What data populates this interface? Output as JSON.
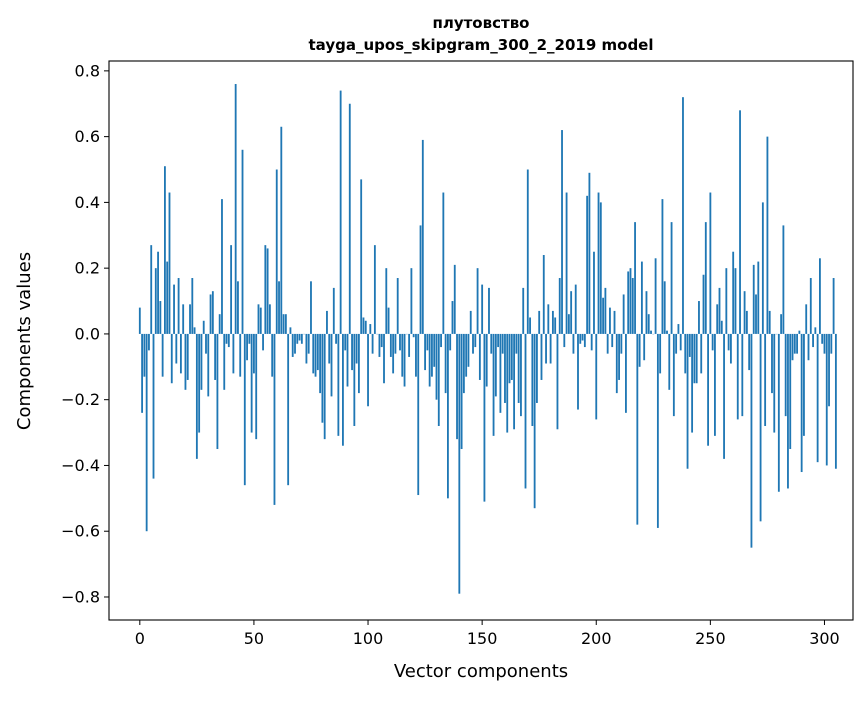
{
  "chart_data": {
    "type": "bar",
    "title_line1": "плутовство",
    "title_line2": "tayga_upos_skipgram_300_2_2019 model",
    "xlabel": "Vector components",
    "ylabel": "Components values",
    "xlim": [
      -13.5,
      312.5
    ],
    "ylim": [
      -0.87,
      0.83
    ],
    "xticks": [
      0,
      50,
      100,
      150,
      200,
      250,
      300
    ],
    "xtick_labels": [
      "0",
      "50",
      "100",
      "150",
      "200",
      "250",
      "300"
    ],
    "yticks": [
      -0.8,
      -0.6,
      -0.4,
      -0.2,
      0.0,
      0.2,
      0.4,
      0.6,
      0.8
    ],
    "ytick_labels": [
      "−0.8",
      "−0.6",
      "−0.4",
      "−0.2",
      "0.0",
      "0.2",
      "0.4",
      "0.6",
      "0.8"
    ],
    "bar_color": "#1f77b4",
    "values": [
      0.08,
      -0.24,
      -0.13,
      -0.6,
      -0.05,
      0.27,
      -0.44,
      0.2,
      0.25,
      0.1,
      -0.13,
      0.51,
      0.22,
      0.43,
      -0.15,
      0.15,
      -0.09,
      0.17,
      -0.12,
      0.09,
      -0.17,
      -0.14,
      0.09,
      0.17,
      0.02,
      -0.38,
      -0.3,
      -0.17,
      0.04,
      -0.06,
      -0.19,
      0.12,
      0.13,
      -0.14,
      -0.35,
      0.06,
      0.41,
      -0.17,
      -0.03,
      -0.04,
      0.27,
      -0.12,
      0.76,
      0.16,
      -0.13,
      0.56,
      -0.46,
      -0.08,
      -0.03,
      -0.3,
      -0.12,
      -0.32,
      0.09,
      0.08,
      -0.05,
      0.27,
      0.26,
      0.09,
      -0.13,
      -0.52,
      0.5,
      0.16,
      0.63,
      0.06,
      0.06,
      -0.46,
      0.02,
      -0.07,
      -0.06,
      -0.03,
      -0.02,
      -0.03,
      0.0,
      -0.09,
      -0.06,
      0.16,
      -0.12,
      -0.13,
      -0.11,
      -0.18,
      -0.27,
      -0.32,
      0.07,
      -0.09,
      -0.19,
      0.14,
      -0.03,
      -0.31,
      0.74,
      -0.34,
      -0.05,
      -0.16,
      0.7,
      -0.11,
      -0.28,
      -0.09,
      -0.18,
      0.47,
      0.05,
      0.04,
      -0.22,
      0.03,
      -0.06,
      0.27,
      0.0,
      -0.07,
      -0.04,
      -0.15,
      0.2,
      0.08,
      -0.07,
      -0.12,
      -0.06,
      0.17,
      -0.05,
      -0.13,
      -0.16,
      0.0,
      -0.07,
      0.2,
      -0.01,
      -0.13,
      -0.49,
      0.33,
      0.59,
      -0.11,
      -0.05,
      -0.16,
      -0.13,
      -0.1,
      -0.2,
      -0.28,
      -0.04,
      0.43,
      -0.18,
      -0.5,
      -0.05,
      0.1,
      0.21,
      -0.32,
      -0.79,
      -0.35,
      -0.18,
      -0.13,
      -0.1,
      0.07,
      -0.06,
      -0.04,
      0.2,
      -0.14,
      0.15,
      -0.51,
      -0.16,
      0.14,
      -0.06,
      -0.31,
      -0.19,
      -0.04,
      -0.24,
      -0.06,
      -0.21,
      -0.3,
      -0.15,
      -0.14,
      -0.29,
      -0.06,
      -0.21,
      -0.25,
      0.14,
      -0.47,
      0.5,
      0.05,
      -0.28,
      -0.53,
      -0.21,
      0.07,
      -0.14,
      0.24,
      -0.09,
      0.09,
      -0.09,
      0.07,
      0.05,
      -0.29,
      0.17,
      0.62,
      -0.04,
      0.43,
      0.06,
      0.13,
      -0.06,
      0.15,
      -0.23,
      -0.03,
      -0.02,
      -0.04,
      0.42,
      0.49,
      -0.05,
      0.25,
      -0.26,
      0.43,
      0.4,
      0.11,
      0.14,
      -0.06,
      0.08,
      -0.04,
      0.07,
      -0.18,
      -0.14,
      -0.06,
      0.12,
      -0.24,
      0.19,
      0.2,
      0.17,
      0.34,
      -0.58,
      -0.1,
      0.22,
      -0.08,
      0.13,
      0.06,
      0.01,
      0.0,
      0.23,
      -0.59,
      -0.12,
      0.41,
      0.16,
      0.01,
      -0.17,
      0.34,
      -0.25,
      -0.06,
      0.03,
      -0.05,
      0.72,
      -0.12,
      -0.41,
      -0.07,
      -0.3,
      -0.15,
      -0.15,
      0.1,
      -0.12,
      0.18,
      0.34,
      -0.34,
      0.43,
      -0.05,
      -0.31,
      0.09,
      0.14,
      0.04,
      -0.38,
      0.2,
      -0.05,
      -0.09,
      0.25,
      0.2,
      -0.26,
      0.68,
      -0.25,
      0.13,
      0.07,
      -0.11,
      -0.65,
      0.21,
      0.12,
      0.22,
      -0.57,
      0.4,
      -0.28,
      0.6,
      0.07,
      -0.18,
      -0.3,
      0.0,
      -0.48,
      0.06,
      0.33,
      -0.25,
      -0.47,
      -0.35,
      -0.08,
      -0.06,
      -0.06,
      0.01,
      -0.42,
      -0.31,
      0.09,
      -0.08,
      0.17,
      -0.04,
      0.02,
      -0.39,
      0.23,
      -0.03,
      -0.06,
      -0.4,
      -0.22,
      -0.06,
      0.17,
      -0.41
    ]
  }
}
